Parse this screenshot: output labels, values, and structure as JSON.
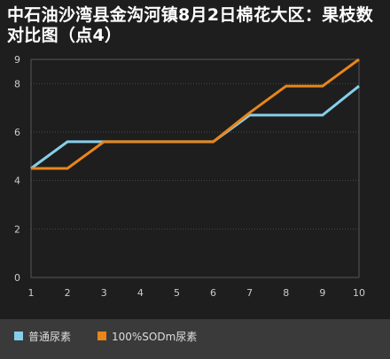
{
  "chart_data": {
    "type": "line",
    "title": "中石油沙湾县金沟河镇8月2日棉花大区：果枝数对比图（点4）",
    "x": [
      1,
      2,
      3,
      4,
      5,
      6,
      7,
      8,
      9,
      10
    ],
    "series": [
      {
        "name": "普通尿素",
        "color": "#87ceeb",
        "values": [
          4.5,
          5.6,
          5.6,
          5.6,
          5.6,
          5.6,
          6.7,
          6.7,
          6.7,
          7.9
        ]
      },
      {
        "name": "100%SODm尿素",
        "color": "#e8861a",
        "values": [
          4.5,
          4.5,
          5.6,
          5.6,
          5.6,
          5.6,
          6.8,
          7.9,
          7.9,
          9.0
        ]
      }
    ],
    "yticks": [
      "0",
      "2",
      "4",
      "6",
      "8",
      "9"
    ],
    "ylim": [
      0,
      9
    ],
    "grid": true,
    "legend": "bottom"
  }
}
